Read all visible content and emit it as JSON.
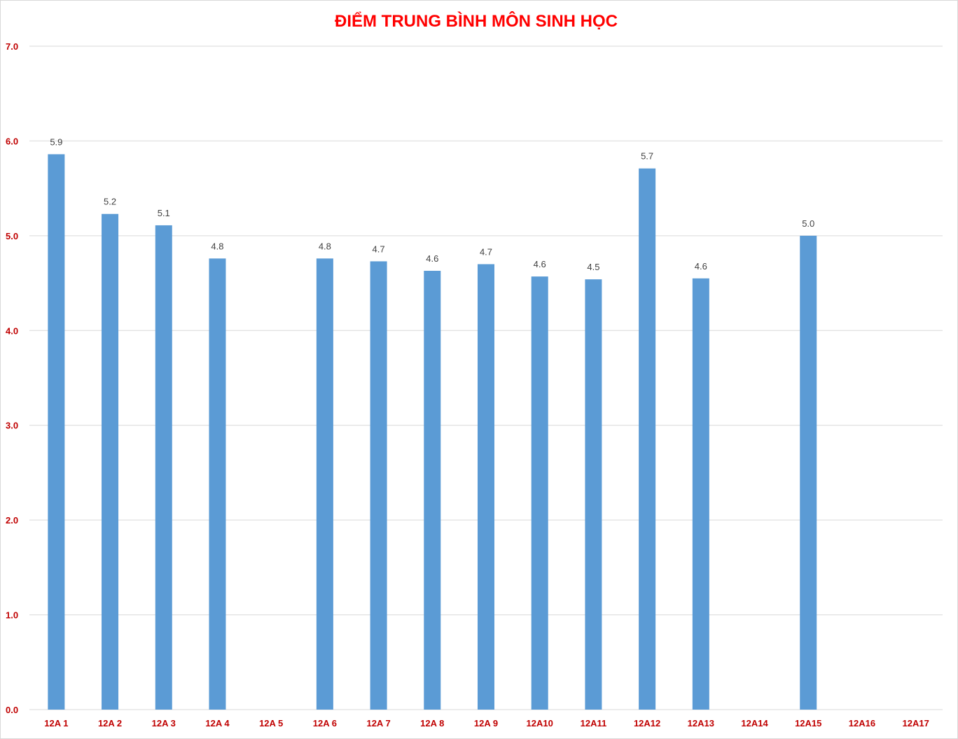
{
  "chart_data": {
    "type": "bar",
    "title": "ĐIỂM TRUNG BÌNH MÔN SINH HỌC",
    "xlabel": "",
    "ylabel": "",
    "categories": [
      "12A 1",
      "12A 2",
      "12A 3",
      "12A 4",
      "12A 5",
      "12A 6",
      "12A 7",
      "12A 8",
      "12A 9",
      "12A10",
      "12A11",
      "12A12",
      "12A13",
      "12A14",
      "12A15",
      "12A16",
      "12A17"
    ],
    "values": [
      5.86,
      5.23,
      5.11,
      4.76,
      null,
      4.76,
      4.73,
      4.63,
      4.7,
      4.57,
      4.54,
      5.71,
      4.55,
      null,
      5.0,
      null,
      null
    ],
    "data_labels": [
      "5.9",
      "5.2",
      "5.1",
      "4.8",
      "",
      "4.8",
      "4.7",
      "4.6",
      "4.7",
      "4.6",
      "4.5",
      "5.7",
      "4.6",
      "",
      "5.0",
      "",
      ""
    ],
    "ylim": [
      0,
      7
    ],
    "yticks": [
      "0.0",
      "1.0",
      "2.0",
      "3.0",
      "4.0",
      "5.0",
      "6.0",
      "7.0"
    ],
    "grid": true,
    "legend": "none",
    "colors": {
      "bar": "#5b9bd5",
      "title": "#ff0000",
      "tick": "#c00000",
      "label": "#404040",
      "grid": "#d9d9d9"
    }
  }
}
